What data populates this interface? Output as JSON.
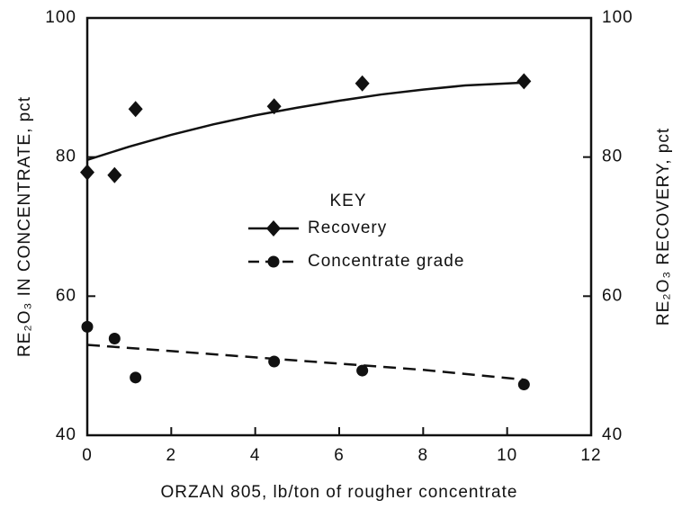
{
  "chart_data": {
    "type": "scatter",
    "xlabel": "ORZAN 805, lb/ton of rougher concentrate",
    "ylabel": "RE₂O₃ IN CONCENTRATE, pct",
    "y2label": "RE₂O₃ RECOVERY, pct",
    "legend_title": "KEY",
    "xlim": [
      0,
      12
    ],
    "xticks": [
      0,
      2,
      4,
      6,
      8,
      10,
      12
    ],
    "ylim": [
      40,
      100
    ],
    "yticks": [
      40,
      60,
      80,
      100
    ],
    "y2lim": [
      40,
      100
    ],
    "y2ticks": [
      40,
      60,
      80,
      100
    ],
    "series": [
      {
        "name": "Recovery",
        "axis": "y2",
        "marker": "diamond",
        "line": "solid",
        "color": "#111111",
        "x": [
          0,
          0.65,
          1.15,
          4.45,
          6.55,
          10.4
        ],
        "values": [
          77.8,
          77.4,
          86.9,
          87.3,
          90.6,
          90.9
        ],
        "curve": {
          "x": [
            0,
            1,
            2,
            3,
            4,
            5,
            6,
            7,
            8,
            9,
            10.4
          ],
          "values": [
            79.6,
            81.5,
            83.2,
            84.7,
            86,
            87.1,
            88.1,
            89,
            89.7,
            90.3,
            90.7
          ]
        }
      },
      {
        "name": "Concentrate grade",
        "axis": "y",
        "marker": "circle",
        "line": "dashed",
        "color": "#111111",
        "x": [
          0,
          0.65,
          1.15,
          4.45,
          6.55,
          10.4
        ],
        "values": [
          55.6,
          53.9,
          48.3,
          50.6,
          49.3,
          47.3
        ],
        "curve": {
          "x": [
            0,
            2,
            4,
            6,
            8,
            10.4
          ],
          "values": [
            53,
            52.1,
            51.2,
            50.3,
            49.4,
            48
          ]
        }
      }
    ]
  }
}
